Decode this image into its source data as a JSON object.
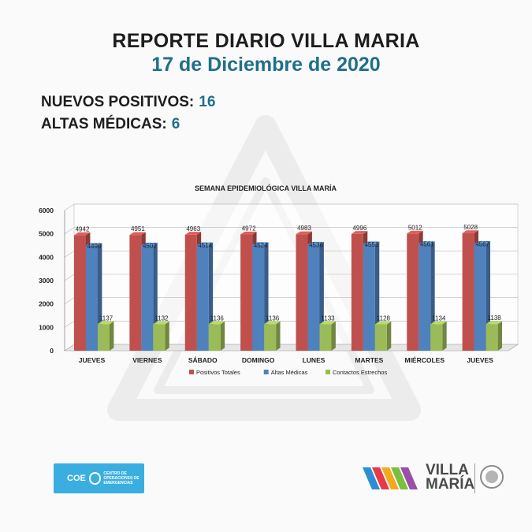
{
  "header": {
    "title": "REPORTE DIARIO VILLA MARIA",
    "date": "17 de Diciembre de 2020"
  },
  "stats": {
    "new_positives_label": "NUEVOS POSITIVOS:",
    "new_positives_value": "16",
    "discharges_label": "ALTAS MÉDICAS:",
    "discharges_value": "6"
  },
  "colors": {
    "positivos": "#c0504d",
    "altas": "#4f81bd",
    "contactos": "#9bbb59",
    "accent": "#1f6f8b"
  },
  "chart_data": {
    "type": "bar",
    "title": "SEMANA EPIDEMIOLÓGICA VILLA MARÍA",
    "categories": [
      "JUEVES",
      "VIERNES",
      "SÁBADO",
      "DOMINGO",
      "LUNES",
      "MARTES",
      "MIÉRCOLES",
      "JUEVES"
    ],
    "series": [
      {
        "name": "Positivos Totales",
        "values": [
          4942,
          4951,
          4963,
          4972,
          4983,
          4996,
          5012,
          5028
        ]
      },
      {
        "name": "Altas Médicas",
        "values": [
          4490,
          4502,
          4514,
          4524,
          4536,
          4551,
          4561,
          4567
        ]
      },
      {
        "name": "Contactos Estrechos",
        "values": [
          1137,
          1132,
          1136,
          1136,
          1133,
          1128,
          1134,
          1138
        ]
      }
    ],
    "ylim": [
      0,
      6000
    ],
    "yticks": [
      "0",
      "1000",
      "2000",
      "3000",
      "4000",
      "5000",
      "6000"
    ],
    "legend_position": "bottom",
    "grid": true
  },
  "logos": {
    "coe_name": "COE",
    "coe_subtitle": "Centro de Operaciones de Emergencias",
    "city_line1": "VILLA",
    "city_line2": "MARÍA"
  }
}
